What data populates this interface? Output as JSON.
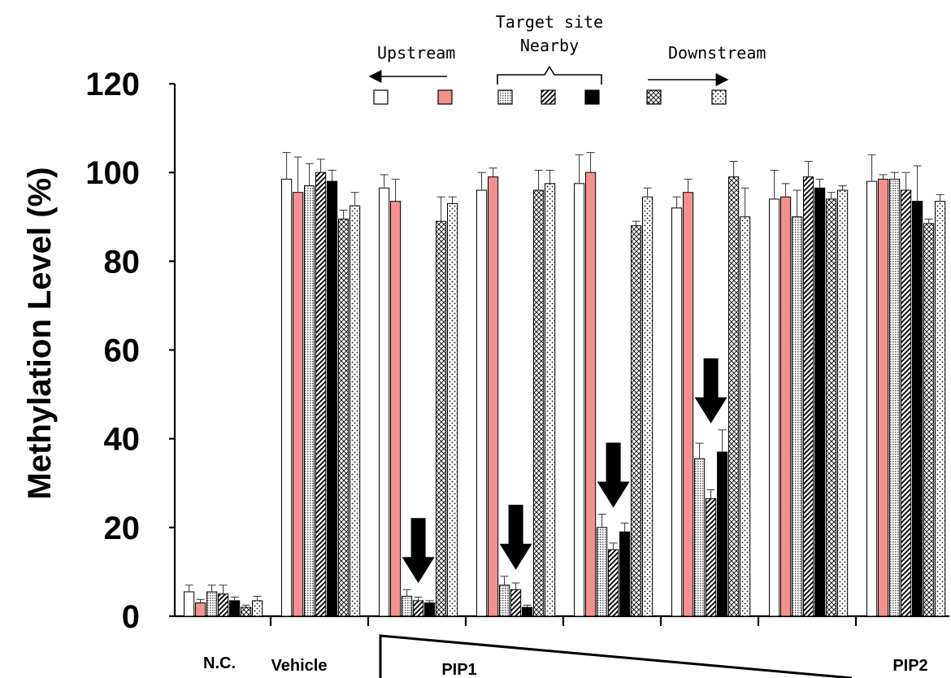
{
  "chart_data": {
    "type": "bar",
    "ylabel": "Methylation Level (%)",
    "ylim": [
      0,
      120
    ],
    "yticks": [
      0,
      20,
      40,
      60,
      80,
      100,
      120
    ],
    "categories": [
      "N.C.",
      "Vehicle",
      "",
      "",
      "",
      "",
      "",
      ""
    ],
    "category_labels": {
      "nc": "N.C.",
      "vehicle": "Vehicle",
      "pip1": "PIP1",
      "pip2": "PIP2"
    },
    "series": [
      {
        "values": [
          5.5,
          98.5,
          96.5,
          96,
          97.5,
          92,
          94,
          98
        ],
        "errors": [
          1.5,
          6,
          3,
          4,
          6.5,
          2.5,
          6.5,
          6
        ]
      },
      {
        "values": [
          3,
          95.5,
          93.5,
          99,
          100,
          95.5,
          94.5,
          98.5
        ],
        "errors": [
          0.8,
          8,
          5,
          2,
          4.5,
          3,
          3,
          1
        ]
      },
      {
        "values": [
          5.5,
          97,
          4.5,
          7,
          20,
          35.5,
          90,
          98.5
        ],
        "errors": [
          1.5,
          5,
          1.5,
          2,
          3,
          3.5,
          6,
          1.5
        ]
      },
      {
        "values": [
          5,
          100,
          3.5,
          6,
          15,
          26.5,
          99,
          96
        ],
        "errors": [
          2,
          3,
          0.8,
          1.5,
          1.5,
          2,
          3.5,
          4
        ]
      },
      {
        "values": [
          3.5,
          98,
          3,
          2,
          19,
          37,
          96.5,
          93.5
        ],
        "errors": [
          0.8,
          2.5,
          0.5,
          0.5,
          2,
          5,
          2,
          8
        ]
      },
      {
        "values": [
          2,
          89.5,
          89,
          96,
          88,
          99,
          94,
          88.5
        ],
        "errors": [
          0.5,
          2,
          5.5,
          4.5,
          1,
          3.5,
          1.5,
          1
        ]
      },
      {
        "values": [
          3.5,
          92.5,
          93,
          97.5,
          94.5,
          90,
          96,
          93.5
        ],
        "errors": [
          1,
          3,
          1.5,
          3,
          2,
          6.5,
          1,
          1.5
        ]
      }
    ],
    "arrow_categories": [
      2,
      3,
      4,
      5
    ],
    "legend": {
      "upstream": "Upstream",
      "target_site": "Target site",
      "nearby": "Nearby",
      "downstream": "Downstream"
    },
    "colors": {
      "pink": "#f4908e",
      "black": "#000000"
    }
  }
}
